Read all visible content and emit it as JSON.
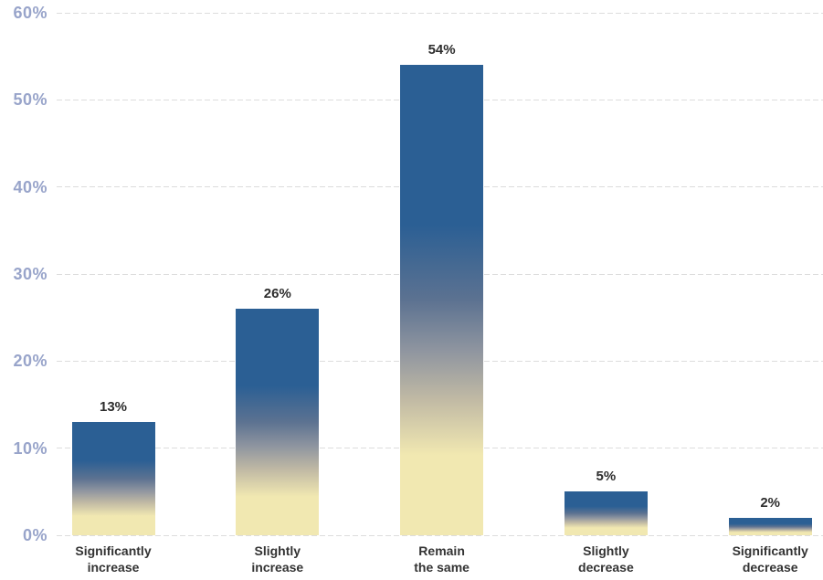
{
  "chart_data": {
    "type": "bar",
    "categories": [
      "Significantly\nincrease",
      "Slightly\nincrease",
      "Remain\nthe same",
      "Slightly\ndecrease",
      "Significantly\ndecrease"
    ],
    "values": [
      13,
      26,
      54,
      5,
      2
    ],
    "value_labels": [
      "13%",
      "26%",
      "54%",
      "5%",
      "2%"
    ],
    "title": "",
    "xlabel": "",
    "ylabel": "",
    "ylim": [
      0,
      60
    ],
    "ytick_interval": 10,
    "ytick_labels": [
      "0%",
      "10%",
      "20%",
      "30%",
      "40%",
      "50%",
      "60%"
    ],
    "grid": "horizontal-dashed",
    "legend": "none",
    "colors": {
      "bar_gradient_top": "#2B5F94",
      "bar_gradient_mid_blue": "#5C7291",
      "bar_gradient_mid_gray": "#9096A0",
      "bar_gradient_mid_tan": "#C0B9A4",
      "bar_gradient_bottom": "#F1E8B1",
      "axis_tick_label": "#98A4CA",
      "gridline": "#DCDCDC",
      "value_label": "#2D2D2D",
      "category_label": "#333333",
      "background": "#FFFFFF"
    }
  }
}
